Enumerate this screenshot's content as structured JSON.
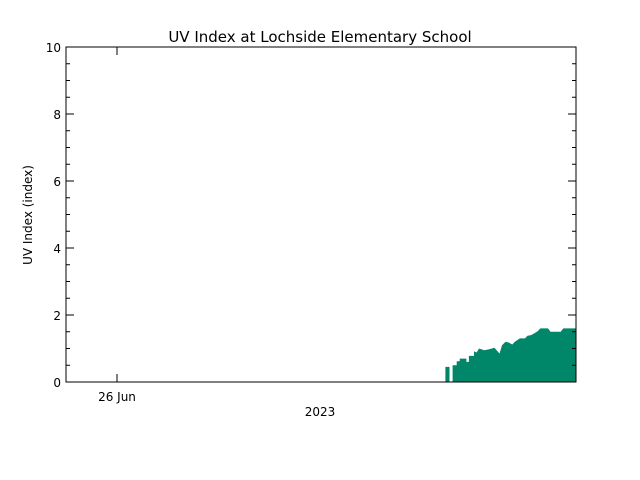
{
  "chart_data": {
    "type": "area",
    "title": "UV Index at Lochside Elementary School",
    "ylabel": "UV Index (index)",
    "xlabel": "2023",
    "ylim": [
      0,
      10
    ],
    "y_ticks": [
      0,
      2,
      4,
      6,
      8,
      10
    ],
    "x_tick_labels": [
      {
        "label": "26 Jun",
        "x": 0.1
      }
    ],
    "xlim": [
      0,
      1
    ],
    "fill_color": "#00876A",
    "series": [
      {
        "values": [
          [
            0.744,
            0.0
          ],
          [
            0.744,
            0.45
          ],
          [
            0.752,
            0.45
          ],
          [
            0.752,
            0.0
          ],
          [
            0.758,
            0.0
          ],
          [
            0.758,
            0.5
          ],
          [
            0.766,
            0.5
          ],
          [
            0.766,
            0.62
          ],
          [
            0.772,
            0.62
          ],
          [
            0.772,
            0.7
          ],
          [
            0.785,
            0.7
          ],
          [
            0.785,
            0.6
          ],
          [
            0.79,
            0.6
          ],
          [
            0.79,
            0.78
          ],
          [
            0.8,
            0.78
          ],
          [
            0.8,
            0.92
          ],
          [
            0.805,
            0.88
          ],
          [
            0.81,
            1.0
          ],
          [
            0.82,
            0.95
          ],
          [
            0.83,
            0.98
          ],
          [
            0.84,
            1.02
          ],
          [
            0.85,
            0.85
          ],
          [
            0.855,
            1.1
          ],
          [
            0.862,
            1.2
          ],
          [
            0.868,
            1.18
          ],
          [
            0.875,
            1.12
          ],
          [
            0.88,
            1.2
          ],
          [
            0.89,
            1.3
          ],
          [
            0.9,
            1.3
          ],
          [
            0.905,
            1.38
          ],
          [
            0.912,
            1.4
          ],
          [
            0.918,
            1.45
          ],
          [
            0.925,
            1.52
          ],
          [
            0.93,
            1.6
          ],
          [
            0.945,
            1.6
          ],
          [
            0.95,
            1.5
          ],
          [
            0.97,
            1.5
          ],
          [
            0.975,
            1.6
          ],
          [
            1.0,
            1.6
          ],
          [
            1.0,
            0.0
          ]
        ]
      }
    ]
  }
}
